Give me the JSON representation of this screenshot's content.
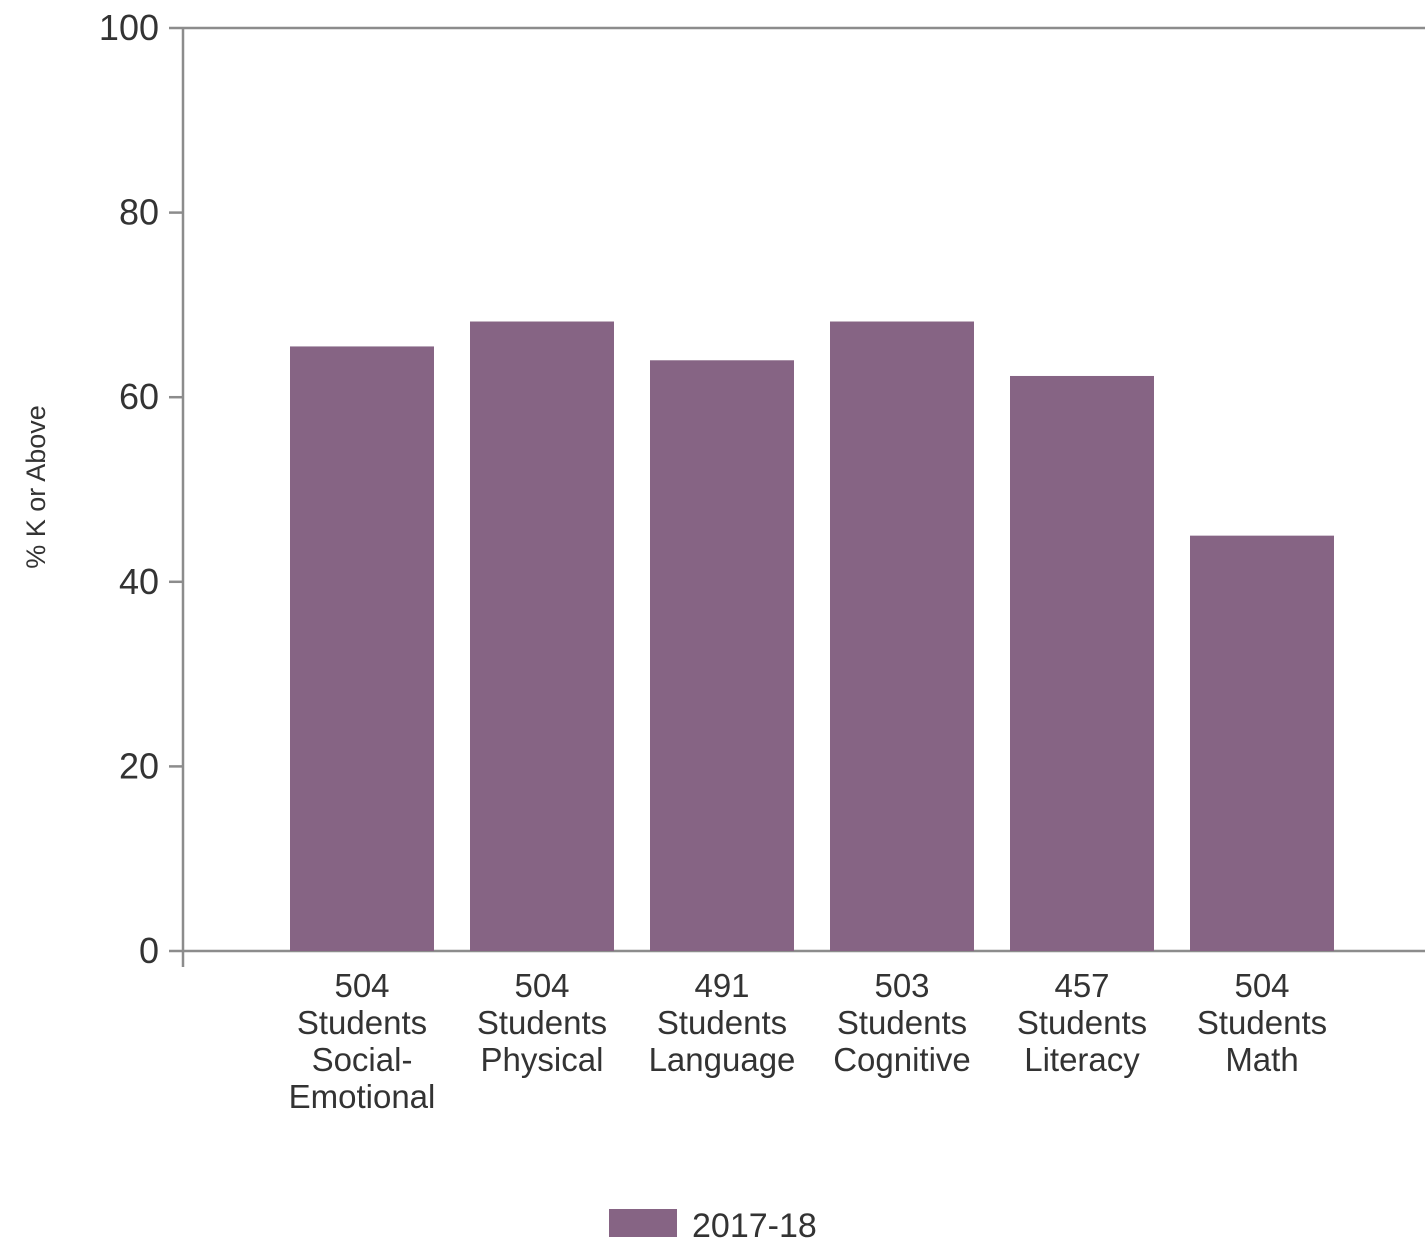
{
  "chart_data": {
    "type": "bar",
    "ylabel": "% K or Above",
    "ylim": [
      0,
      100
    ],
    "yticks": [
      0,
      20,
      40,
      60,
      80,
      100
    ],
    "categories": [
      [
        "504",
        "Students",
        "Social-",
        "Emotional"
      ],
      [
        "504",
        "Students",
        "Physical"
      ],
      [
        "491",
        "Students",
        "Language"
      ],
      [
        "503",
        "Students",
        "Cognitive"
      ],
      [
        "457",
        "Students",
        "Literacy"
      ],
      [
        "504",
        "Students",
        "Math"
      ]
    ],
    "series": [
      {
        "name": "2017-18",
        "color": "#866484",
        "values": [
          65.5,
          68.2,
          64.0,
          68.2,
          62.3,
          45.0
        ]
      }
    ],
    "legend_position": "bottom-center",
    "grid": false
  }
}
